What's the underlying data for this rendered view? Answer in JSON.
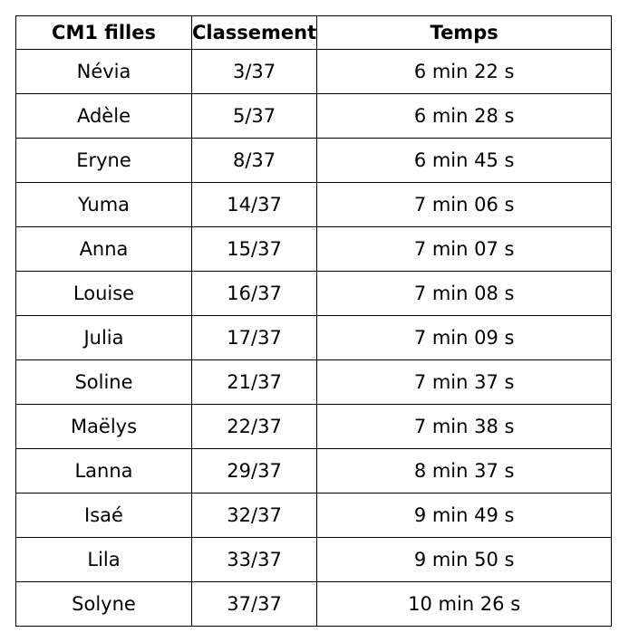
{
  "table": {
    "header": [
      "CM1 filles",
      "Classement",
      "Temps"
    ],
    "rows": [
      [
        "Névia",
        "3/37",
        "6 min 22 s"
      ],
      [
        "Adèle",
        "5/37",
        "6 min 28 s"
      ],
      [
        "Eryne",
        "8/37",
        "6 min 45 s"
      ],
      [
        "Yuma",
        "14/37",
        "7 min 06 s"
      ],
      [
        "Anna",
        "15/37",
        "7 min 07 s"
      ],
      [
        "Louise",
        "16/37",
        "7 min 08 s"
      ],
      [
        "Julia",
        "17/37",
        "7 min 09 s"
      ],
      [
        "Soline",
        "21/37",
        "7 min 37 s"
      ],
      [
        "Maëlys",
        "22/37",
        "7 min 38 s"
      ],
      [
        "Lanna",
        "29/37",
        "8 min 37 s"
      ],
      [
        "Isaé",
        "32/37",
        "9 min 49 s"
      ],
      [
        "Lila",
        "33/37",
        "9 min 50 s"
      ],
      [
        "Solyne",
        "37/37",
        "10 min 26 s"
      ]
    ]
  }
}
